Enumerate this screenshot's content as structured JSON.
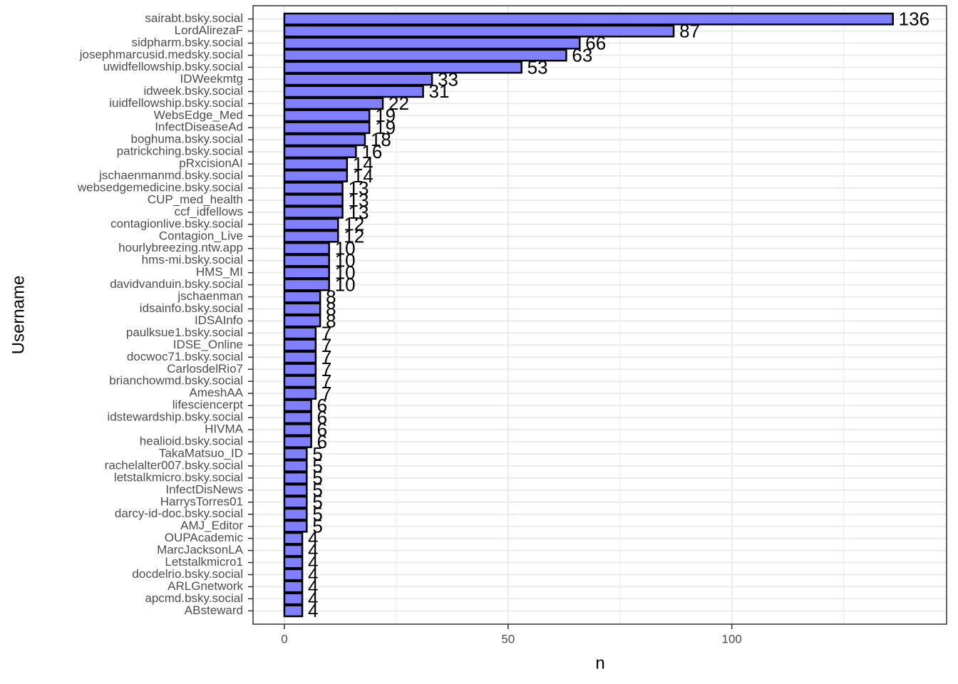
{
  "chart_data": {
    "type": "bar",
    "orientation": "horizontal",
    "x_label": "n",
    "y_label": "Username",
    "categories": [
      "sairabt.bsky.social",
      "LordAlirezaF",
      "sidpharm.bsky.social",
      "josephmarcusid.medsky.social",
      "uwidfellowship.bsky.social",
      "IDWeekmtg",
      "idweek.bsky.social",
      "iuidfellowship.bsky.social",
      "WebsEdge_Med",
      "InfectDiseaseAd",
      "boghuma.bsky.social",
      "patrickching.bsky.social",
      "pRxcisionAI",
      "jschaenmanmd.bsky.social",
      "websedgemedicine.bsky.social",
      "CUP_med_health",
      "ccf_idfellows",
      "contagionlive.bsky.social",
      "Contagion_Live",
      "hourlybreezing.ntw.app",
      "hms-mi.bsky.social",
      "HMS_MI",
      "davidvanduin.bsky.social",
      "jschaenman",
      "idsainfo.bsky.social",
      "IDSAInfo",
      "paulksue1.bsky.social",
      "IDSE_Online",
      "docwoc71.bsky.social",
      "CarlosdelRio7",
      "brianchowmd.bsky.social",
      "AmeshAA",
      "lifesciencerpt",
      "idstewardship.bsky.social",
      "HIVMA",
      "healioid.bsky.social",
      "TakaMatsuo_ID",
      "rachelalter007.bsky.social",
      "letstalkmicro.bsky.social",
      "InfectDisNews",
      "HarrysTorres01",
      "darcy-id-doc.bsky.social",
      "AMJ_Editor",
      "OUPAcademic",
      "MarcJacksonLA",
      "Letstalkmicro1",
      "docdelrio.bsky.social",
      "ARLGnetwork",
      "apcmd.bsky.social",
      "ABsteward"
    ],
    "values": [
      136,
      87,
      66,
      63,
      53,
      33,
      31,
      22,
      19,
      19,
      18,
      16,
      14,
      14,
      13,
      13,
      13,
      12,
      12,
      10,
      10,
      10,
      10,
      8,
      8,
      8,
      7,
      7,
      7,
      7,
      7,
      7,
      6,
      6,
      6,
      6,
      5,
      5,
      5,
      5,
      5,
      5,
      5,
      4,
      4,
      4,
      4,
      4,
      4,
      4
    ],
    "color": "#8080ff",
    "edge_color": "#000000",
    "xlim": [
      -7,
      148
    ],
    "xticks": [
      0,
      50,
      100
    ],
    "minor_xticks": [
      25,
      75,
      125
    ],
    "grid": true
  }
}
